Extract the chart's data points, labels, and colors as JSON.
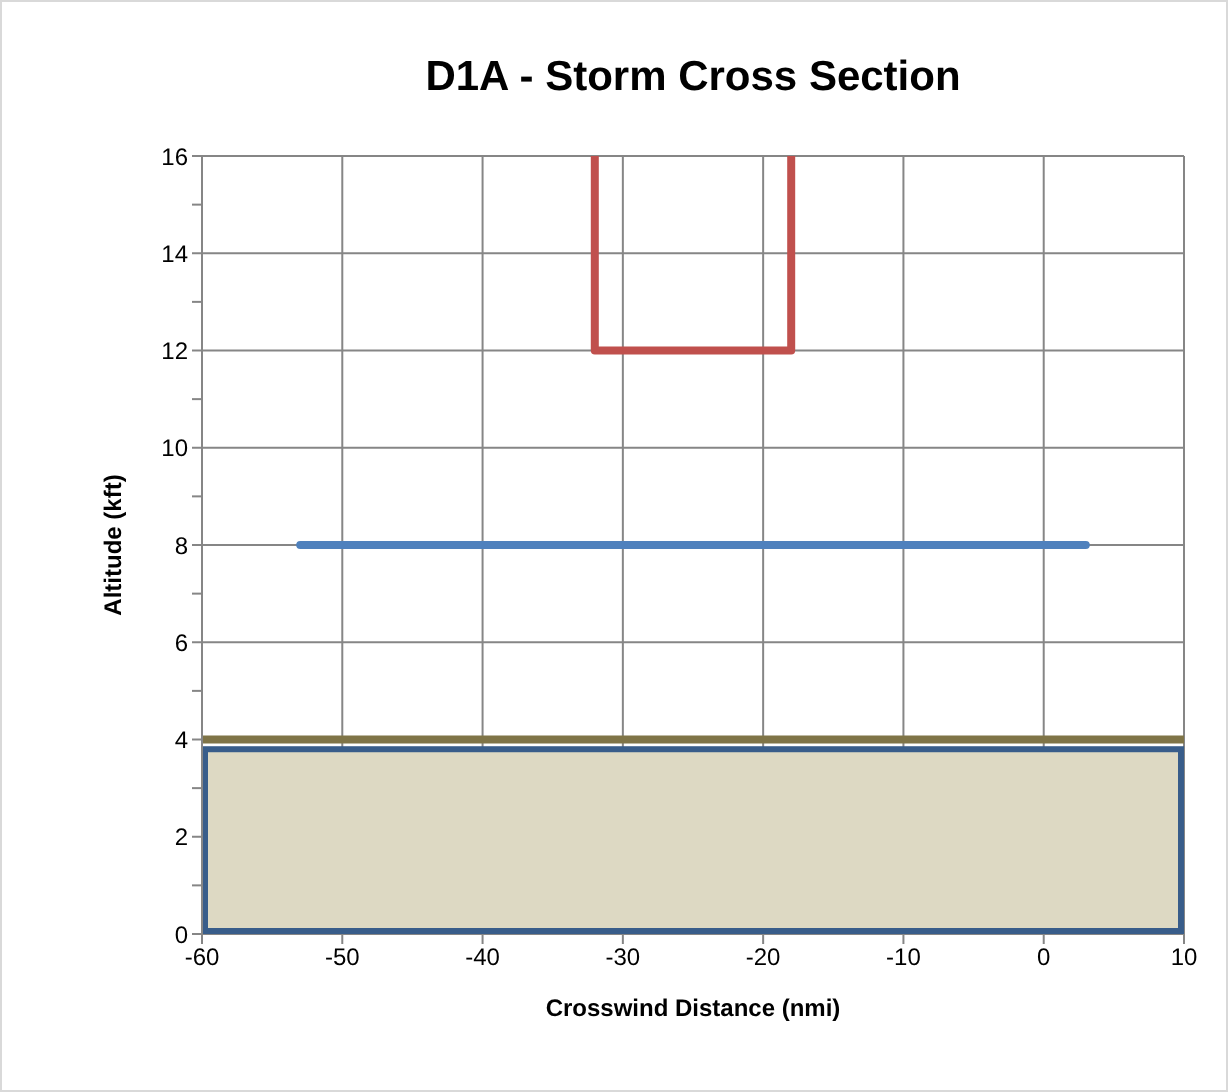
{
  "chart_data": {
    "type": "line",
    "title": "D1A - Storm Cross Section",
    "xlabel": "Crosswind Distance (nmi)",
    "ylabel": "Altitude (kft)",
    "xlim": [
      -60,
      10
    ],
    "xticks": [
      -60,
      -50,
      -40,
      -30,
      -20,
      -10,
      0,
      10
    ],
    "ylim": [
      0,
      16
    ],
    "yticks": [
      0,
      {
        "value": 1,
        "label": null
      },
      2,
      {
        "value": 3,
        "label": null
      },
      4,
      {
        "value": 5,
        "label": null
      },
      6,
      {
        "value": 7,
        "label": null
      },
      8,
      {
        "value": 9,
        "label": null
      },
      10,
      {
        "value": 11,
        "label": null
      },
      12,
      {
        "value": 13,
        "label": null
      },
      14,
      {
        "value": 15,
        "label": null
      },
      16
    ],
    "grid": true,
    "series": [
      {
        "type": "area",
        "color": "#ddd9c3",
        "x": [
          -60,
          10
        ],
        "values": [
          3.8,
          3.8
        ]
      },
      {
        "color": "#7f7447",
        "x": [
          -60,
          10
        ],
        "values": [
          4,
          4
        ]
      },
      {
        "color": "#4f81bd",
        "x": [
          -53,
          3
        ],
        "values": [
          8,
          8
        ]
      },
      {
        "color": "#c0504d",
        "x": [
          -32,
          -32,
          -18,
          -18
        ],
        "values": [
          16,
          12,
          12,
          16
        ]
      }
    ]
  }
}
